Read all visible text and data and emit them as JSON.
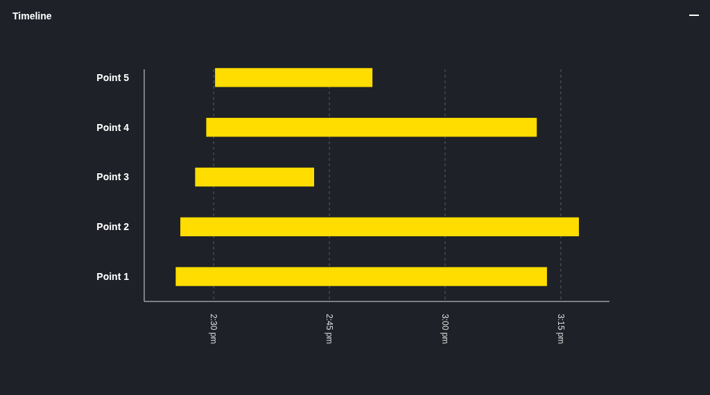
{
  "chart_data": {
    "type": "bar",
    "title": "Timeline",
    "orientation": "horizontal",
    "categories": [
      "Point 5",
      "Point 4",
      "Point 3",
      "Point 2",
      "Point 1"
    ],
    "base": [
      14.503,
      14.484,
      14.46,
      14.428,
      14.418
    ],
    "values": [
      0.34,
      0.714,
      0.257,
      0.861,
      0.802
    ],
    "color": "#ffdd00",
    "xlim": [
      14.35,
      15.355
    ],
    "xticks": [
      {
        "value": 14.5,
        "label": "2:30 pm"
      },
      {
        "value": 14.75,
        "label": "2:45 pm"
      },
      {
        "value": 15,
        "label": "3:00 pm"
      },
      {
        "value": 15.25,
        "label": "3:15 pm"
      }
    ],
    "grid": "x"
  }
}
